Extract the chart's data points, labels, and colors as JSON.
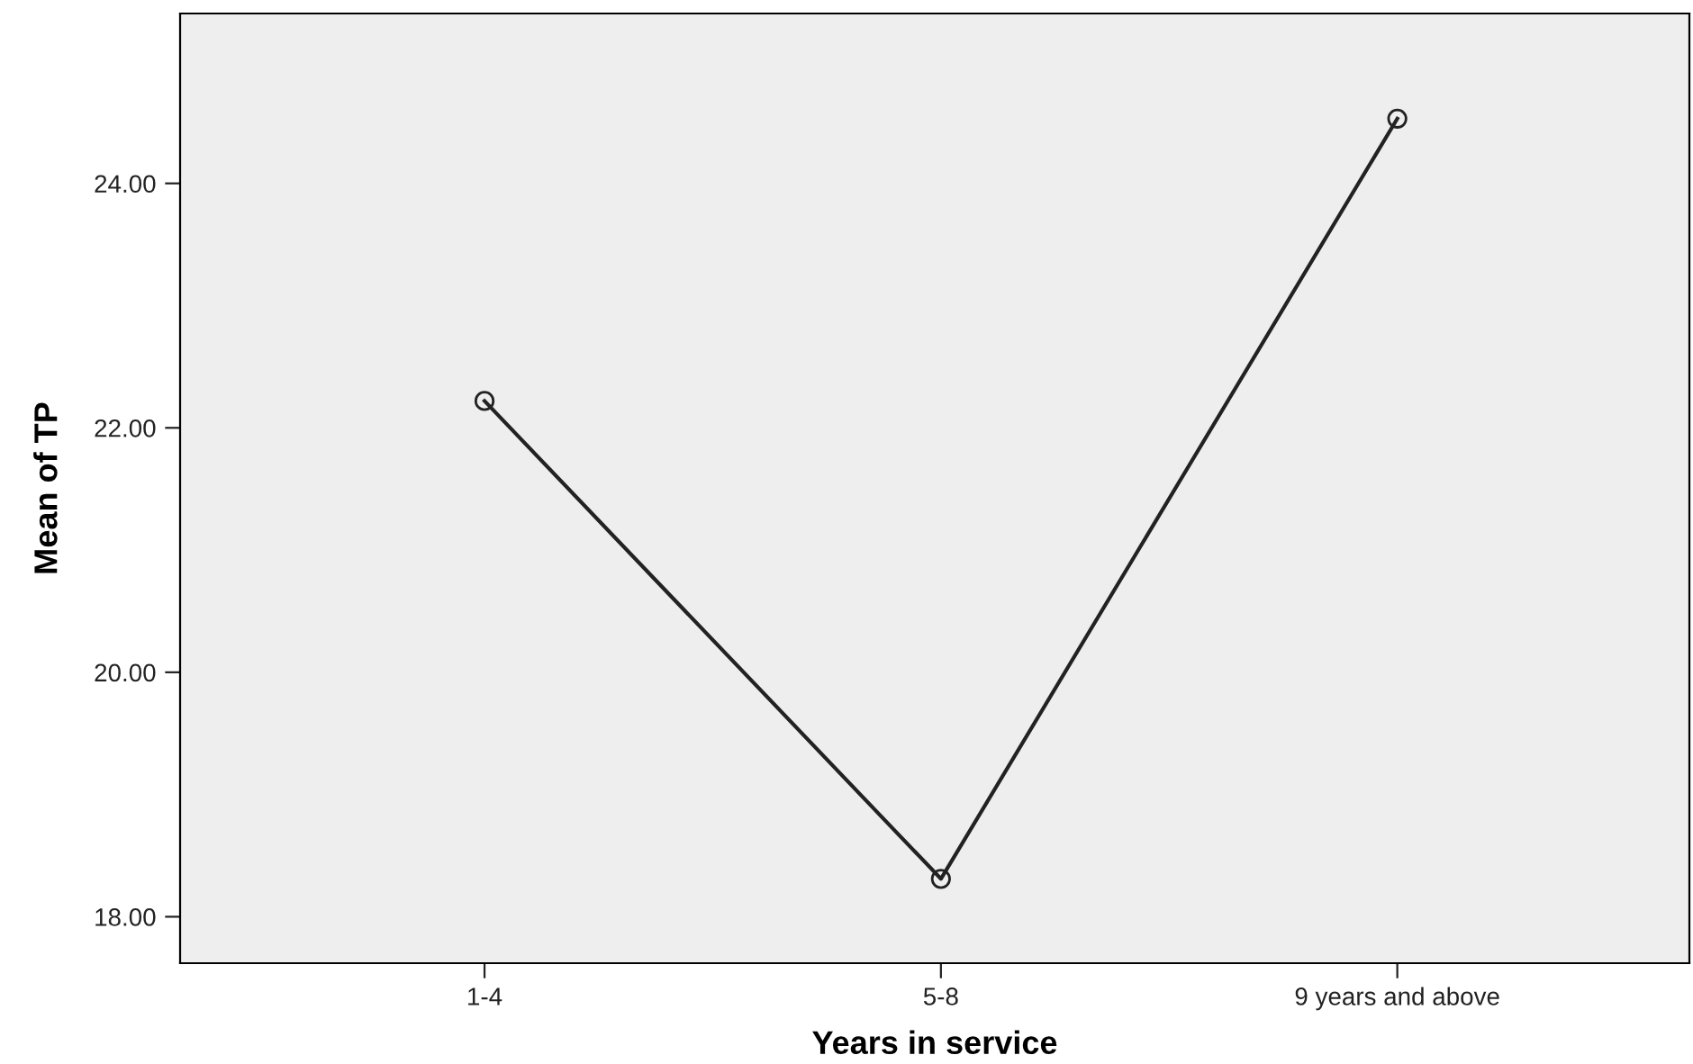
{
  "chart_data": {
    "type": "line",
    "xlabel": "Years in service",
    "ylabel": "Mean of TP",
    "categories": [
      "1-4",
      "5-8",
      "9 years and above"
    ],
    "series": [
      {
        "color": "#222222",
        "values": [
          22.22,
          18.31,
          24.53
        ]
      }
    ],
    "ylim": [
      17.62,
      25.39
    ],
    "yticks": [
      {
        "value": 18,
        "label": "18.00"
      },
      {
        "value": 20,
        "label": "20.00"
      },
      {
        "value": 22,
        "label": "22.00"
      },
      {
        "value": 24,
        "label": "24.00"
      }
    ],
    "grid": false,
    "legend": false,
    "marker": "circle",
    "line_style": "solid"
  }
}
